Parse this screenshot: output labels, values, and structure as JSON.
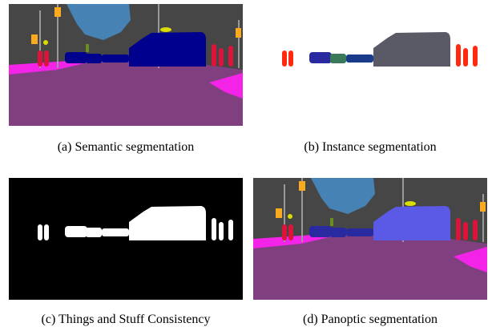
{
  "panels": [
    {
      "caption": "(a) Semantic segmentation"
    },
    {
      "caption": "(b) Instance segmentation"
    },
    {
      "caption": "(c) Things and Stuff Consistency"
    },
    {
      "caption": "(d) Panoptic segmentation"
    }
  ]
}
